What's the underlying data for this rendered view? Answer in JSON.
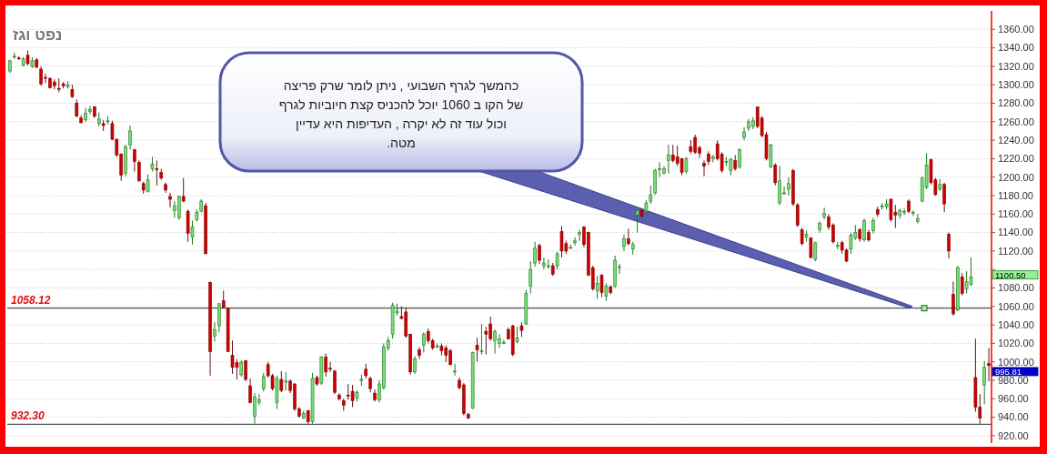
{
  "chart_data": {
    "type": "candlestick",
    "title": "נפט וגז",
    "categories": [
      null,
      null,
      null,
      null,
      null,
      null,
      null,
      null,
      null,
      null,
      null,
      null,
      null,
      null,
      null,
      null,
      null,
      null,
      null,
      null,
      null,
      null,
      null,
      null,
      null,
      null,
      null,
      null,
      null,
      null,
      null,
      null,
      null,
      null,
      null,
      null,
      null,
      null,
      null,
      null,
      null,
      null,
      null,
      null,
      null,
      null,
      null,
      null,
      null,
      null,
      null,
      null,
      null,
      null,
      null,
      null,
      null,
      null,
      null,
      null,
      null,
      null,
      null,
      null,
      null,
      null,
      null,
      null,
      null,
      null,
      null,
      null,
      null,
      null,
      null,
      null,
      null,
      null,
      null,
      null,
      null,
      null,
      null,
      null,
      null,
      null,
      null,
      null,
      null,
      null,
      null,
      null,
      null,
      null,
      null,
      null,
      null,
      null,
      null,
      null,
      null,
      null,
      null,
      null,
      null,
      null,
      null,
      null,
      null,
      null,
      null,
      null,
      null,
      null,
      null,
      null,
      null,
      null,
      null,
      null,
      null,
      null,
      null,
      null,
      null,
      null,
      null,
      null,
      null,
      null,
      null,
      null,
      null,
      null,
      null,
      null,
      null,
      null,
      null,
      null,
      null,
      null,
      null,
      null,
      null,
      null,
      null,
      null,
      null,
      null,
      null,
      null,
      null,
      null,
      null,
      null,
      null,
      null,
      null,
      null,
      null,
      null,
      null,
      null,
      null,
      null,
      null,
      null,
      null,
      null,
      null,
      null,
      null,
      null,
      null,
      null,
      null,
      null,
      null,
      null,
      null,
      null,
      null,
      null,
      null,
      null,
      null,
      null,
      null,
      null,
      null,
      null,
      null,
      null,
      null,
      null,
      null,
      null,
      null,
      null,
      null,
      null,
      null,
      null,
      null,
      null,
      null,
      null,
      null,
      null,
      null,
      null,
      null,
      null,
      null,
      null,
      null,
      null,
      null,
      null,
      null
    ],
    "ohlc": [
      [
        1315,
        1327,
        1313,
        1326
      ],
      [
        1330,
        1335,
        1328,
        1331
      ],
      [
        1329,
        1331,
        1327,
        1328
      ],
      [
        1321,
        1330,
        1320,
        1328
      ],
      [
        1332,
        1337,
        1321,
        1323
      ],
      [
        1320,
        1330,
        1318,
        1326
      ],
      [
        1327,
        1329,
        1318,
        1319
      ],
      [
        1317,
        1320,
        1299,
        1301
      ],
      [
        1308,
        1312,
        1302,
        1307
      ],
      [
        1307,
        1308,
        1296,
        1297
      ],
      [
        1303,
        1306,
        1295,
        1299
      ],
      [
        1296,
        1307,
        1292,
        1295
      ],
      [
        1301,
        1303,
        1296,
        1299
      ],
      [
        1298,
        1304,
        1296,
        1300
      ],
      [
        1295,
        1300,
        1286,
        1287
      ],
      [
        1280,
        1284,
        1265,
        1266
      ],
      [
        1264,
        1267,
        1258,
        1259
      ],
      [
        1262,
        1275,
        1260,
        1269
      ],
      [
        1271,
        1277,
        1268,
        1273
      ],
      [
        1276,
        1277,
        1264,
        1266
      ],
      [
        1258,
        1270,
        1255,
        1263
      ],
      [
        1258,
        1262,
        1250,
        1256
      ],
      [
        1261,
        1266,
        1257,
        1261
      ],
      [
        1258,
        1261,
        1240,
        1241
      ],
      [
        1241,
        1242,
        1222,
        1224
      ],
      [
        1225,
        1226,
        1196,
        1202
      ],
      [
        1204,
        1235,
        1201,
        1233
      ],
      [
        1235,
        1256,
        1230,
        1250
      ],
      [
        1230,
        1230,
        1206,
        1217
      ],
      [
        1216,
        1218,
        1195,
        1196
      ],
      [
        1193,
        1195,
        1182,
        1186
      ],
      [
        1184,
        1203,
        1184,
        1197
      ],
      [
        1209,
        1222,
        1206,
        1214
      ],
      [
        1209,
        1218,
        1191,
        1208
      ],
      [
        1205,
        1209,
        1197,
        1199
      ],
      [
        1192,
        1194,
        1183,
        1186
      ],
      [
        1179,
        1183,
        1167,
        1176
      ],
      [
        1164,
        1174,
        1156,
        1169
      ],
      [
        1156,
        1180,
        1154,
        1179
      ],
      [
        1179,
        1199,
        1173,
        1174
      ],
      [
        1163,
        1165,
        1130,
        1139
      ],
      [
        1135,
        1153,
        1127,
        1146
      ],
      [
        1154,
        1165,
        1152,
        1162
      ],
      [
        1163,
        1176,
        1162,
        1174
      ],
      [
        1169,
        1172,
        1117,
        1117
      ],
      [
        1086,
        1087,
        985,
        1011
      ],
      [
        1028,
        1043,
        1022,
        1035
      ],
      [
        1039,
        1063,
        1032,
        1063
      ],
      [
        1066,
        1077,
        1058,
        1059
      ],
      [
        1058,
        1058,
        1011,
        1011
      ],
      [
        1007,
        1023,
        987,
        994
      ],
      [
        999,
        1003,
        981,
        994
      ],
      [
        986,
        1002,
        984,
        999
      ],
      [
        1001,
        1002,
        979,
        981
      ],
      [
        974,
        982,
        955,
        956
      ],
      [
        941,
        966,
        933,
        962
      ],
      [
        956,
        965,
        953,
        959
      ],
      [
        971,
        988,
        968,
        984
      ],
      [
        997,
        1000,
        983,
        985
      ],
      [
        985,
        987,
        969,
        971
      ],
      [
        956,
        985,
        949,
        982
      ],
      [
        981,
        990,
        967,
        969
      ],
      [
        979,
        989,
        969,
        979
      ],
      [
        979,
        981,
        966,
        969
      ],
      [
        976,
        977,
        947,
        949
      ],
      [
        949,
        951,
        940,
        941
      ],
      [
        939,
        947,
        938,
        944
      ],
      [
        947,
        948,
        933,
        935
      ],
      [
        935,
        988,
        933,
        982
      ],
      [
        983,
        985,
        974,
        976
      ],
      [
        977,
        1006,
        975,
        1005
      ],
      [
        1005,
        1009,
        984,
        989
      ],
      [
        993,
        1000,
        989,
        992
      ],
      [
        990,
        991,
        965,
        967
      ],
      [
        964,
        966,
        958,
        960
      ],
      [
        958,
        960,
        947,
        953
      ],
      [
        964,
        976,
        959,
        963
      ],
      [
        968,
        975,
        951,
        958
      ],
      [
        961,
        969,
        957,
        967
      ],
      [
        981,
        986,
        974,
        981
      ],
      [
        992,
        998,
        982,
        985
      ],
      [
        982,
        984,
        967,
        971
      ],
      [
        966,
        970,
        957,
        959
      ],
      [
        959,
        980,
        956,
        976
      ],
      [
        972,
        1020,
        970,
        1016
      ],
      [
        1015,
        1027,
        1012,
        1023
      ],
      [
        1030,
        1064,
        1025,
        1061
      ],
      [
        1053,
        1063,
        1050,
        1055
      ],
      [
        1049,
        1060,
        1046,
        1047
      ],
      [
        1054,
        1059,
        1026,
        1028
      ],
      [
        1030,
        1030,
        986,
        989
      ],
      [
        989,
        1006,
        987,
        1003
      ],
      [
        1013,
        1016,
        1003,
        1007
      ],
      [
        1018,
        1032,
        1010,
        1030
      ],
      [
        1033,
        1036,
        1020,
        1023
      ],
      [
        1023,
        1025,
        1013,
        1015
      ],
      [
        1017,
        1020,
        1015,
        1017
      ],
      [
        1017,
        1020,
        1007,
        1012
      ],
      [
        1015,
        1018,
        1000,
        1007
      ],
      [
        1012,
        1014,
        996,
        997
      ],
      [
        990,
        998,
        985,
        990
      ],
      [
        980,
        983,
        970,
        972
      ],
      [
        975,
        977,
        942,
        944
      ],
      [
        943,
        945,
        938,
        939
      ],
      [
        950,
        1011,
        949,
        1010
      ],
      [
        1018,
        1026,
        1000,
        1013
      ],
      [
        1012,
        1041,
        1008,
        1012
      ],
      [
        1033,
        1038,
        1008,
        1030
      ],
      [
        1041,
        1049,
        1023,
        1025
      ],
      [
        1023,
        1035,
        1009,
        1033
      ],
      [
        1020,
        1030,
        1015,
        1025
      ],
      [
        1021,
        1024,
        1019,
        1021
      ],
      [
        1035,
        1037,
        1024,
        1025
      ],
      [
        1039,
        1040,
        1006,
        1008
      ],
      [
        1022,
        1038,
        1020,
        1026
      ],
      [
        1039,
        1043,
        1027,
        1034
      ],
      [
        1041,
        1078,
        1040,
        1074
      ],
      [
        1082,
        1109,
        1074,
        1100
      ],
      [
        1107,
        1130,
        1103,
        1123
      ],
      [
        1126,
        1128,
        1106,
        1110
      ],
      [
        1104,
        1113,
        1100,
        1107
      ],
      [
        1104,
        1111,
        1101,
        1104
      ],
      [
        1104,
        1107,
        1093,
        1095
      ],
      [
        1104,
        1119,
        1100,
        1117
      ],
      [
        1141,
        1147,
        1113,
        1120
      ],
      [
        1128,
        1131,
        1117,
        1120
      ],
      [
        1124,
        1127,
        1122,
        1124
      ],
      [
        1129,
        1135,
        1126,
        1131
      ],
      [
        1138,
        1143,
        1131,
        1140
      ],
      [
        1146,
        1147,
        1124,
        1127
      ],
      [
        1140,
        1141,
        1093,
        1094
      ],
      [
        1102,
        1104,
        1077,
        1079
      ],
      [
        1077,
        1093,
        1068,
        1085
      ],
      [
        1094,
        1095,
        1070,
        1075
      ],
      [
        1071,
        1085,
        1066,
        1082
      ],
      [
        1081,
        1083,
        1073,
        1075
      ],
      [
        1082,
        1115,
        1080,
        1110
      ],
      [
        1103,
        1106,
        1095,
        1103
      ],
      [
        1125,
        1138,
        1120,
        1133
      ],
      [
        1133,
        1144,
        1126,
        1128
      ],
      [
        1122,
        1130,
        1116,
        1127
      ],
      [
        1159,
        1165,
        1140,
        1164
      ],
      [
        1164,
        1166,
        1156,
        1158
      ],
      [
        1163,
        1175,
        1160,
        1172
      ],
      [
        1174,
        1191,
        1171,
        1181
      ],
      [
        1183,
        1209,
        1181,
        1207
      ],
      [
        1208,
        1216,
        1200,
        1209
      ],
      [
        1204,
        1212,
        1203,
        1209
      ],
      [
        1218,
        1235,
        1204,
        1224
      ],
      [
        1224,
        1235,
        1216,
        1218
      ],
      [
        1222,
        1234,
        1212,
        1215
      ],
      [
        1220,
        1221,
        1202,
        1205
      ],
      [
        1206,
        1222,
        1204,
        1220
      ],
      [
        1233,
        1240,
        1225,
        1228
      ],
      [
        1243,
        1246,
        1225,
        1227
      ],
      [
        1232,
        1234,
        1221,
        1226
      ],
      [
        1215,
        1218,
        1201,
        1212
      ],
      [
        1225,
        1228,
        1213,
        1217
      ],
      [
        1220,
        1224,
        1216,
        1222
      ],
      [
        1236,
        1240,
        1218,
        1220
      ],
      [
        1225,
        1227,
        1205,
        1207
      ],
      [
        1217,
        1222,
        1212,
        1217
      ],
      [
        1207,
        1221,
        1202,
        1219
      ],
      [
        1218,
        1224,
        1207,
        1209
      ],
      [
        1211,
        1231,
        1209,
        1230
      ],
      [
        1243,
        1254,
        1240,
        1249
      ],
      [
        1253,
        1263,
        1250,
        1260
      ],
      [
        1255,
        1265,
        1252,
        1261
      ],
      [
        1276,
        1276,
        1253,
        1255
      ],
      [
        1264,
        1266,
        1243,
        1245
      ],
      [
        1246,
        1249,
        1218,
        1220
      ],
      [
        1211,
        1236,
        1210,
        1235
      ],
      [
        1213,
        1215,
        1191,
        1194
      ],
      [
        1172,
        1212,
        1170,
        1196
      ],
      [
        1183,
        1190,
        1181,
        1183
      ],
      [
        1187,
        1200,
        1180,
        1193
      ],
      [
        1207,
        1209,
        1169,
        1171
      ],
      [
        1170,
        1172,
        1146,
        1148
      ],
      [
        1143,
        1145,
        1126,
        1128
      ],
      [
        1135,
        1142,
        1130,
        1138
      ],
      [
        1134,
        1135,
        1112,
        1113
      ],
      [
        1111,
        1130,
        1109,
        1129
      ],
      [
        1143,
        1152,
        1140,
        1150
      ],
      [
        1157,
        1167,
        1154,
        1161
      ],
      [
        1157,
        1160,
        1143,
        1146
      ],
      [
        1148,
        1150,
        1128,
        1130
      ],
      [
        1126,
        1130,
        1122,
        1126
      ],
      [
        1129,
        1131,
        1117,
        1121
      ],
      [
        1121,
        1123,
        1108,
        1109
      ],
      [
        1122,
        1140,
        1117,
        1137
      ],
      [
        1134,
        1148,
        1132,
        1140
      ],
      [
        1143,
        1145,
        1130,
        1133
      ],
      [
        1132,
        1155,
        1130,
        1153
      ],
      [
        1140,
        1143,
        1130,
        1132
      ],
      [
        1142,
        1156,
        1139,
        1153
      ],
      [
        1165,
        1168,
        1157,
        1160
      ],
      [
        1169,
        1172,
        1165,
        1169
      ],
      [
        1168,
        1176,
        1165,
        1171
      ],
      [
        1176,
        1177,
        1152,
        1154
      ],
      [
        1162,
        1170,
        1145,
        1159
      ],
      [
        1159,
        1166,
        1155,
        1164
      ],
      [
        1163,
        1166,
        1159,
        1163
      ],
      [
        1174,
        1176,
        1161,
        1163
      ],
      [
        1162,
        1164,
        1158,
        1162
      ],
      [
        1152,
        1160,
        1150,
        1155
      ],
      [
        1174,
        1201,
        1173,
        1199
      ],
      [
        1189,
        1226,
        1187,
        1213
      ],
      [
        1219,
        1220,
        1192,
        1194
      ],
      [
        1197,
        1199,
        1180,
        1181
      ],
      [
        1187,
        1198,
        1185,
        1192
      ],
      [
        1192,
        1194,
        1162,
        1171
      ],
      [
        1138,
        1140,
        1112,
        1120
      ],
      [
        1073,
        1087,
        1050,
        1052
      ],
      [
        1056,
        1104,
        1055,
        1102
      ],
      [
        1092,
        1096,
        1072,
        1074
      ],
      [
        1079,
        1098,
        1074,
        1087
      ],
      [
        1084,
        1113,
        1082,
        1092
      ],
      [
        983,
        1025,
        946,
        951
      ],
      [
        951,
        965,
        933,
        939
      ],
      [
        975,
        1001,
        954,
        994
      ],
      [
        998,
        1015,
        979,
        996
      ]
    ],
    "ylim": [
      912,
      1380
    ],
    "yticks": [
      {
        "value": 920,
        "label": "920.00"
      },
      {
        "value": 940,
        "label": "940.00"
      },
      {
        "value": 960,
        "label": "960.00"
      },
      {
        "value": 980,
        "label": "980.00"
      },
      {
        "value": 1000,
        "label": "1000.00"
      },
      {
        "value": 1020,
        "label": "1020.00"
      },
      {
        "value": 1040,
        "label": "1040.00"
      },
      {
        "value": 1060,
        "label": "1060.00"
      },
      {
        "value": 1080,
        "label": "1080.00"
      },
      {
        "value": 1100,
        "label": null
      },
      {
        "value": 1120,
        "label": "1120.00"
      },
      {
        "value": 1140,
        "label": "1140.00"
      },
      {
        "value": 1160,
        "label": "1160.00"
      },
      {
        "value": 1180,
        "label": "1180.00"
      },
      {
        "value": 1200,
        "label": "1200.00"
      },
      {
        "value": 1220,
        "label": "1220.00"
      },
      {
        "value": 1240,
        "label": "1240.00"
      },
      {
        "value": 1260,
        "label": "1260.00"
      },
      {
        "value": 1280,
        "label": "1280.00"
      },
      {
        "value": 1300,
        "label": "1300.00"
      },
      {
        "value": 1320,
        "label": "1320.00"
      },
      {
        "value": 1340,
        "label": "1340.00"
      },
      {
        "value": 1360,
        "label": "1360.00"
      }
    ],
    "grid": "y",
    "ref_lines": [
      {
        "axis": "y",
        "value": 1058.12,
        "label": "1058.12",
        "color": "#555555"
      },
      {
        "axis": "y",
        "value": 932.3,
        "label": "932.30",
        "color": "#555555"
      }
    ],
    "annotations": [
      "כהמשך לגרף השבועי , ניתן לומר שרק פריצה\nשל הקו ב 1060 יוכל להכניס קצת חיוביות לגרף\nוכול עוד זה לא יקרה , העדיפות היא עדיין\nמטה.",
      "1100.50",
      "995.81"
    ]
  }
}
